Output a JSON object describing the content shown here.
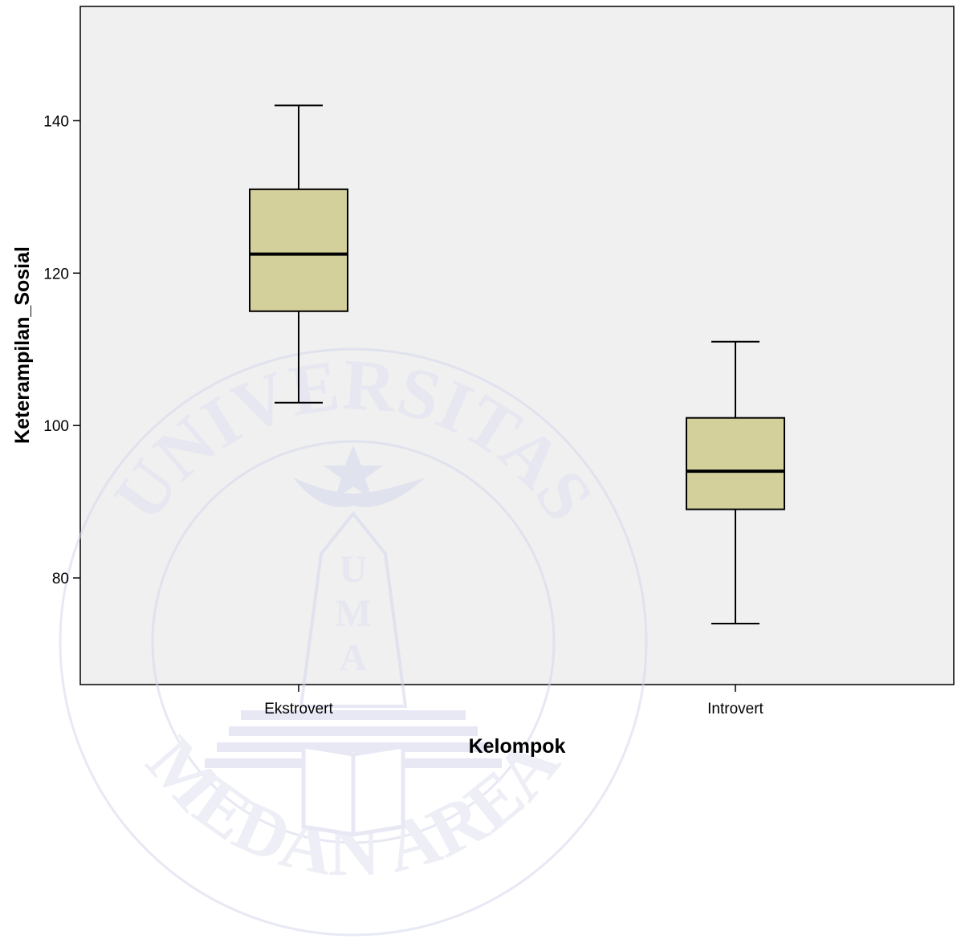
{
  "chart_data": {
    "type": "boxplot",
    "xlabel": "Kelompok",
    "ylabel": "Keterampilan_Sosial",
    "ylim": [
      66,
      155
    ],
    "yticks": [
      80,
      100,
      120,
      140
    ],
    "grid": false,
    "categories": [
      "Ekstrovert",
      "Introvert"
    ],
    "boxes": [
      {
        "category": "Ekstrovert",
        "min": 103,
        "q1": 115,
        "median": 122.5,
        "q3": 131,
        "max": 142
      },
      {
        "category": "Introvert",
        "min": 74,
        "q1": 89,
        "median": 94,
        "q3": 101,
        "max": 111
      }
    ],
    "colors": {
      "plot_bg": "#f0f0f0",
      "box_fill": "#d4d09b",
      "stroke": "#000000",
      "watermark": "#dfe1f0"
    }
  },
  "watermark": {
    "top_text": "UNIVERSITAS",
    "bottom_text": "MEDAN AREA",
    "emblem_text": "UMA"
  }
}
